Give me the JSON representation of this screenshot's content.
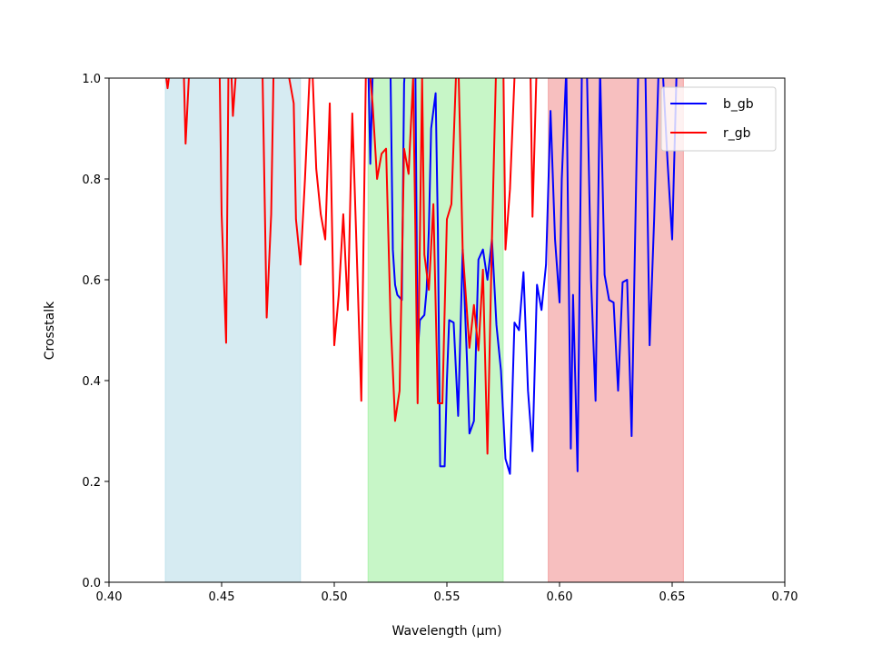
{
  "chart_data": {
    "type": "line",
    "title": "",
    "xlabel": "Wavelength (µm)",
    "ylabel": "Crosstalk",
    "xlim": [
      0.4,
      0.7
    ],
    "ylim": [
      0.0,
      1.0
    ],
    "xticks": [
      "0.40",
      "0.45",
      "0.50",
      "0.55",
      "0.60",
      "0.65",
      "0.70"
    ],
    "yticks": [
      "0.0",
      "0.2",
      "0.4",
      "0.6",
      "0.8",
      "1.0"
    ],
    "grid": false,
    "legend_position": "top-right",
    "bands": [
      {
        "xmin": 0.425,
        "xmax": 0.485,
        "color": "#add8e6"
      },
      {
        "xmin": 0.515,
        "xmax": 0.575,
        "color": "#90ee90"
      },
      {
        "xmin": 0.595,
        "xmax": 0.655,
        "color": "#f08080"
      }
    ],
    "series": [
      {
        "name": "b_gb",
        "color": "#0000ff",
        "points": [
          [
            0.508,
            1.0
          ],
          [
            0.509,
            1.02
          ],
          [
            0.515,
            1.05
          ],
          [
            0.516,
            0.83
          ],
          [
            0.517,
            1.0
          ],
          [
            0.518,
            1.05
          ],
          [
            0.524,
            1.05
          ],
          [
            0.525,
            1.0
          ],
          [
            0.526,
            0.66
          ],
          [
            0.527,
            0.59
          ],
          [
            0.528,
            0.57
          ],
          [
            0.53,
            0.56
          ],
          [
            0.531,
            0.99
          ],
          [
            0.532,
            1.05
          ],
          [
            0.536,
            1.02
          ],
          [
            0.537,
            0.45
          ],
          [
            0.538,
            0.52
          ],
          [
            0.54,
            0.53
          ],
          [
            0.541,
            0.58
          ],
          [
            0.542,
            0.7
          ],
          [
            0.543,
            0.9
          ],
          [
            0.545,
            0.97
          ],
          [
            0.546,
            0.7
          ],
          [
            0.547,
            0.23
          ],
          [
            0.549,
            0.23
          ],
          [
            0.55,
            0.4
          ],
          [
            0.551,
            0.52
          ],
          [
            0.553,
            0.515
          ],
          [
            0.555,
            0.33
          ],
          [
            0.557,
            0.66
          ],
          [
            0.559,
            0.43
          ],
          [
            0.56,
            0.295
          ],
          [
            0.562,
            0.32
          ],
          [
            0.564,
            0.64
          ],
          [
            0.566,
            0.66
          ],
          [
            0.568,
            0.6
          ],
          [
            0.57,
            0.68
          ],
          [
            0.572,
            0.51
          ],
          [
            0.574,
            0.42
          ],
          [
            0.576,
            0.245
          ],
          [
            0.578,
            0.215
          ],
          [
            0.58,
            0.515
          ],
          [
            0.582,
            0.5
          ],
          [
            0.584,
            0.615
          ],
          [
            0.586,
            0.38
          ],
          [
            0.588,
            0.26
          ],
          [
            0.59,
            0.59
          ],
          [
            0.592,
            0.54
          ],
          [
            0.594,
            0.63
          ],
          [
            0.596,
            0.935
          ],
          [
            0.598,
            0.68
          ],
          [
            0.6,
            0.555
          ],
          [
            0.601,
            0.8
          ],
          [
            0.603,
            1.02
          ],
          [
            0.605,
            0.265
          ],
          [
            0.606,
            0.57
          ],
          [
            0.607,
            0.4
          ],
          [
            0.608,
            0.22
          ],
          [
            0.61,
            1.05
          ],
          [
            0.612,
            1.05
          ],
          [
            0.614,
            0.6
          ],
          [
            0.616,
            0.36
          ],
          [
            0.618,
            1.02
          ],
          [
            0.62,
            0.61
          ],
          [
            0.622,
            0.56
          ],
          [
            0.624,
            0.555
          ],
          [
            0.626,
            0.38
          ],
          [
            0.628,
            0.595
          ],
          [
            0.63,
            0.6
          ],
          [
            0.632,
            0.29
          ],
          [
            0.633,
            0.55
          ],
          [
            0.635,
            1.03
          ],
          [
            0.638,
            1.05
          ],
          [
            0.64,
            0.47
          ],
          [
            0.642,
            0.72
          ],
          [
            0.644,
            1.02
          ],
          [
            0.646,
            1.0
          ],
          [
            0.648,
            0.83
          ],
          [
            0.65,
            0.68
          ],
          [
            0.652,
            1.02
          ]
        ]
      },
      {
        "name": "r_gb",
        "color": "#ff0000",
        "points": [
          [
            0.424,
            1.05
          ],
          [
            0.426,
            0.98
          ],
          [
            0.428,
            1.05
          ],
          [
            0.433,
            1.05
          ],
          [
            0.434,
            0.87
          ],
          [
            0.436,
            1.05
          ],
          [
            0.449,
            1.05
          ],
          [
            0.45,
            0.73
          ],
          [
            0.452,
            0.475
          ],
          [
            0.453,
            1.0
          ],
          [
            0.454,
            1.05
          ],
          [
            0.455,
            0.925
          ],
          [
            0.457,
            1.05
          ],
          [
            0.468,
            1.05
          ],
          [
            0.47,
            0.525
          ],
          [
            0.472,
            0.73
          ],
          [
            0.473,
            1.0
          ],
          [
            0.474,
            1.05
          ],
          [
            0.479,
            1.05
          ],
          [
            0.48,
            1.0
          ],
          [
            0.482,
            0.95
          ],
          [
            0.483,
            0.72
          ],
          [
            0.485,
            0.63
          ],
          [
            0.487,
            0.8
          ],
          [
            0.489,
            1.0
          ],
          [
            0.49,
            1.05
          ],
          [
            0.492,
            0.82
          ],
          [
            0.494,
            0.73
          ],
          [
            0.496,
            0.68
          ],
          [
            0.498,
            0.95
          ],
          [
            0.5,
            0.47
          ],
          [
            0.502,
            0.57
          ],
          [
            0.504,
            0.73
          ],
          [
            0.506,
            0.54
          ],
          [
            0.508,
            0.93
          ],
          [
            0.51,
            0.65
          ],
          [
            0.512,
            0.36
          ],
          [
            0.514,
            1.0
          ],
          [
            0.515,
            1.05
          ],
          [
            0.517,
            0.95
          ],
          [
            0.519,
            0.8
          ],
          [
            0.521,
            0.85
          ],
          [
            0.523,
            0.86
          ],
          [
            0.525,
            0.52
          ],
          [
            0.527,
            0.32
          ],
          [
            0.529,
            0.38
          ],
          [
            0.531,
            0.86
          ],
          [
            0.533,
            0.81
          ],
          [
            0.535,
            1.0
          ],
          [
            0.536,
            0.7
          ],
          [
            0.537,
            0.355
          ],
          [
            0.539,
            1.0
          ],
          [
            0.54,
            0.65
          ],
          [
            0.542,
            0.58
          ],
          [
            0.544,
            0.75
          ],
          [
            0.546,
            0.355
          ],
          [
            0.548,
            0.355
          ],
          [
            0.55,
            0.72
          ],
          [
            0.552,
            0.75
          ],
          [
            0.554,
            1.0
          ],
          [
            0.555,
            1.05
          ],
          [
            0.557,
            0.66
          ],
          [
            0.559,
            0.53
          ],
          [
            0.56,
            0.465
          ],
          [
            0.562,
            0.55
          ],
          [
            0.564,
            0.46
          ],
          [
            0.566,
            0.62
          ],
          [
            0.568,
            0.255
          ],
          [
            0.57,
            0.68
          ],
          [
            0.572,
            1.05
          ],
          [
            0.575,
            1.05
          ],
          [
            0.576,
            0.66
          ],
          [
            0.578,
            0.78
          ],
          [
            0.58,
            1.0
          ],
          [
            0.581,
            1.05
          ],
          [
            0.587,
            1.05
          ],
          [
            0.588,
            0.725
          ],
          [
            0.59,
            1.05
          ]
        ]
      }
    ]
  }
}
